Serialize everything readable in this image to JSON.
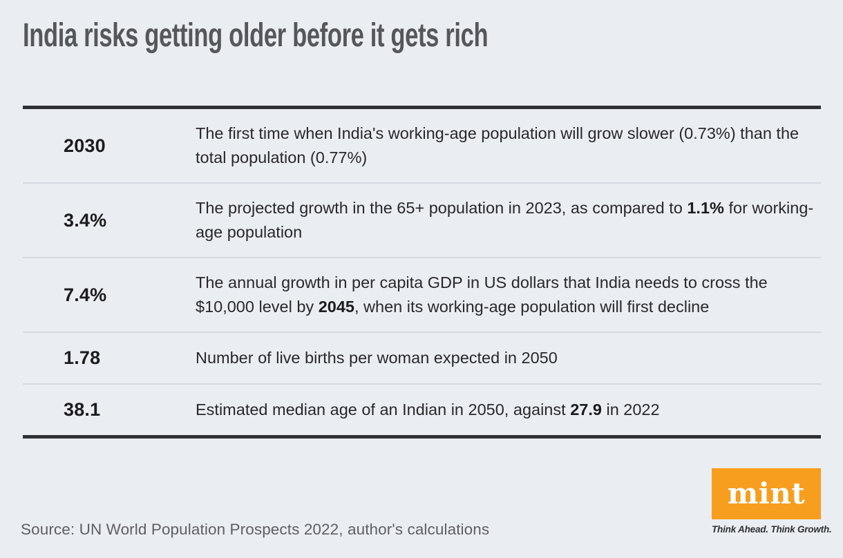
{
  "title": "India risks getting older before it gets rich",
  "colors": {
    "background": "#EAEDF1",
    "title_text": "#56575B",
    "body_text": "#28282C",
    "stat_text": "#1C1C1F",
    "thick_rule": "#303136",
    "thin_rule": "#D6D9DF",
    "source_text": "#5E5F64",
    "brand_orange": "#F89E1E",
    "logo_text": "#FFFFFF"
  },
  "table": {
    "rows": [
      {
        "stat": "2030",
        "desc_pre": "The first time when India's working-age population will grow slower (0.73%) than the total population (0.77%)",
        "desc_bold": "",
        "desc_post": ""
      },
      {
        "stat": "3.4%",
        "desc_pre": "The projected growth in the 65+ population in 2023, as compared to ",
        "desc_bold": "1.1%",
        "desc_post": " for working-age population"
      },
      {
        "stat": "7.4%",
        "desc_pre": "The annual growth in per capita GDP in US dollars that India needs to cross the $10,000 level by ",
        "desc_bold": "2045",
        "desc_post": ", when its working-age population will first decline"
      },
      {
        "stat": "1.78",
        "desc_pre": "Number of live births per woman expected in 2050",
        "desc_bold": "",
        "desc_post": ""
      },
      {
        "stat": "38.1",
        "desc_pre": "Estimated median age of an Indian in 2050, against ",
        "desc_bold": "27.9",
        "desc_post": " in 2022"
      }
    ]
  },
  "footer": {
    "source": "Source: UN World Population Prospects 2022, author's calculations"
  },
  "brand": {
    "logo_text": "mint",
    "tagline": "Think Ahead. Think Growth."
  },
  "chart_data": {
    "type": "table",
    "title": "India risks getting older before it gets rich",
    "columns": [
      "value",
      "description"
    ],
    "rows": [
      [
        "2030",
        "The first time when India's working-age population will grow slower (0.73%) than the total population (0.77%)"
      ],
      [
        "3.4%",
        "The projected growth in the 65+ population in 2023, as compared to 1.1% for working-age population"
      ],
      [
        "7.4%",
        "The annual growth in per capita GDP in US dollars that India needs to cross the $10,000 level by 2045, when its working-age population will first decline"
      ],
      [
        "1.78",
        "Number of live births per woman expected in 2050"
      ],
      [
        "38.1",
        "Estimated median age of an Indian in 2050, against 27.9 in 2022"
      ]
    ],
    "source": "Source: UN World Population Prospects 2022, author's calculations"
  }
}
